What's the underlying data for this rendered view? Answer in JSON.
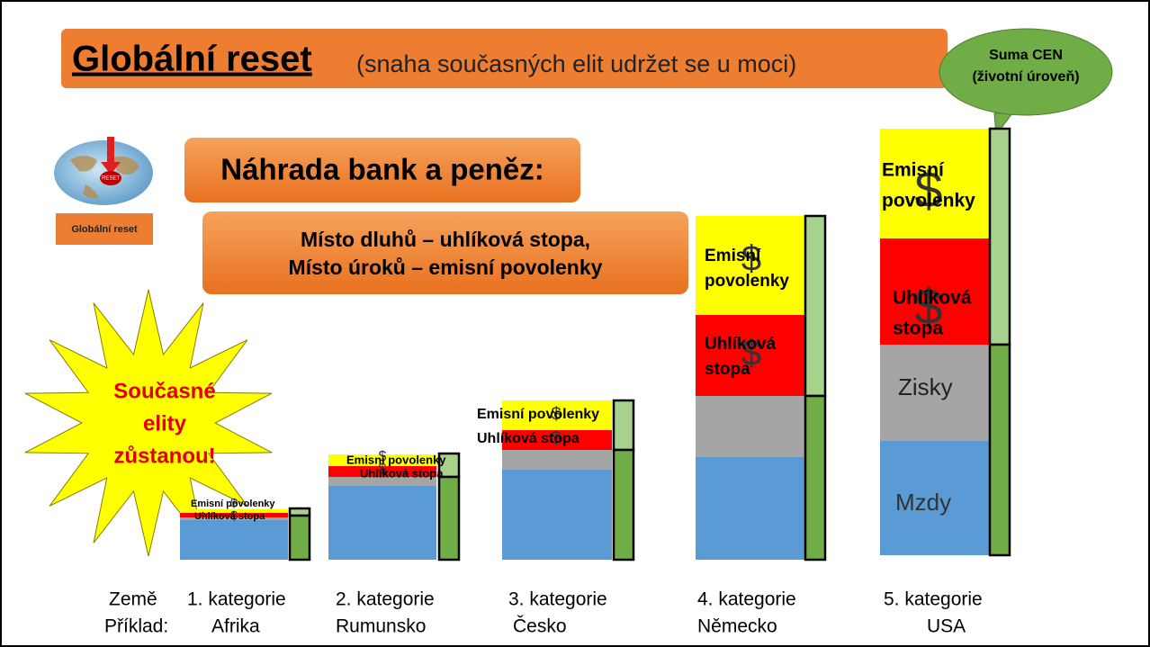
{
  "title": {
    "main": "Globální reset",
    "sub": "(snaha současných elit udržet se u moci)"
  },
  "bubble": [
    "Suma CEN",
    "(životní úroveň)"
  ],
  "globe": {
    "button": "RESET",
    "label": "Globální reset"
  },
  "heading": "Náhrada bank a peněz:",
  "subheading": [
    "Místo dluhů – uhlíková stopa,",
    "Místo úroků – emisní povolenky"
  ],
  "star": [
    "Současné",
    "elity",
    "zůstanou!"
  ],
  "row_labels": [
    "Země",
    "Příklad:"
  ],
  "currency": "$",
  "columns": [
    {
      "category": "1. kategorie",
      "example": "Afrika",
      "emission": [
        "Emisní povolenky"
      ],
      "carbon": [
        "Uhlíková stopa"
      ]
    },
    {
      "category": "2. kategorie",
      "example": "Rumunsko",
      "emission": [
        "Emisní povolenky"
      ],
      "carbon": [
        "Uhlíková stopa"
      ]
    },
    {
      "category": "3. kategorie",
      "example": "Česko",
      "emission": [
        "Emisní povolenky"
      ],
      "carbon": [
        "Uhlíková stopa"
      ]
    },
    {
      "category": "4. kategorie",
      "example": "Německo",
      "emission": [
        "Emisní",
        "povolenky"
      ],
      "carbon": [
        "Uhlíková",
        "stopa"
      ]
    },
    {
      "category": "5. kategorie",
      "example": "USA",
      "emission": [
        "Emisní",
        "povolenky"
      ],
      "carbon": [
        "Uhlíková",
        "stopa"
      ],
      "profit": "Zisky",
      "wages": "Mzdy"
    }
  ]
}
